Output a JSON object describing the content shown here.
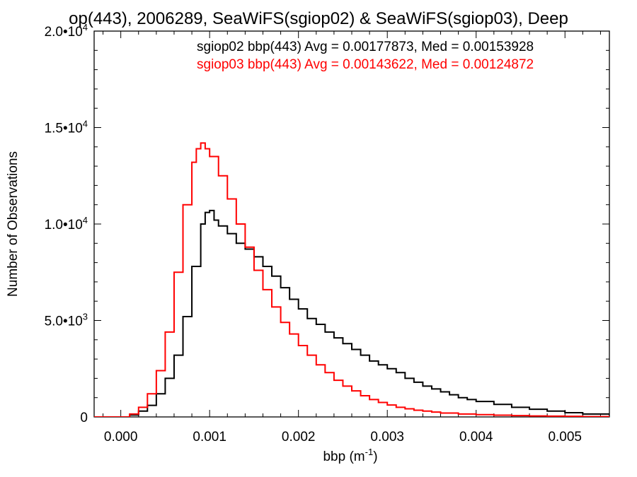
{
  "chart_data": {
    "type": "line",
    "title": "op(443), 2006289, SeaWiFS(sgiop02) & SeaWiFS(sgiop03), Deep",
    "xlabel": {
      "base": "bbp (m",
      "sup": "-1",
      "tail": ")"
    },
    "ylabel": "Number of Observations",
    "xlim": [
      -0.0003,
      0.0055
    ],
    "ylim": [
      0,
      20000
    ],
    "grid": false,
    "legend_position": "top-right",
    "x_ticks": [
      {
        "value": 0.0,
        "label": "0.000"
      },
      {
        "value": 0.001,
        "label": "0.001"
      },
      {
        "value": 0.002,
        "label": "0.002"
      },
      {
        "value": 0.003,
        "label": "0.003"
      },
      {
        "value": 0.004,
        "label": "0.004"
      },
      {
        "value": 0.005,
        "label": "0.005"
      }
    ],
    "y_ticks": [
      {
        "value": 0,
        "mantissa": "0",
        "exp": ""
      },
      {
        "value": 5000,
        "mantissa": "5.0•10",
        "exp": "3"
      },
      {
        "value": 10000,
        "mantissa": "1.0•10",
        "exp": "4"
      },
      {
        "value": 15000,
        "mantissa": "1.5•10",
        "exp": "4"
      },
      {
        "value": 20000,
        "mantissa": "2.0•10",
        "exp": "4"
      }
    ],
    "series": [
      {
        "name": "sgiop02 bbp(443) Avg = 0.00177873, Med = 0.00153928",
        "color": "#000000",
        "x": [
          -0.0003,
          -5e-05,
          0.0001,
          0.0002,
          0.0003,
          0.0004,
          0.0005,
          0.0006,
          0.0007,
          0.0008,
          0.0009,
          0.00095,
          0.001,
          0.00105,
          0.0011,
          0.0012,
          0.0013,
          0.0014,
          0.0015,
          0.0016,
          0.0017,
          0.0018,
          0.0019,
          0.002,
          0.0021,
          0.0022,
          0.0023,
          0.0024,
          0.0025,
          0.0026,
          0.0027,
          0.0028,
          0.0029,
          0.003,
          0.0031,
          0.0032,
          0.0033,
          0.0034,
          0.0035,
          0.0036,
          0.0037,
          0.0038,
          0.0039,
          0.004,
          0.0042,
          0.0044,
          0.0046,
          0.0048,
          0.005,
          0.0052,
          0.0055
        ],
        "values": [
          0,
          0,
          100,
          300,
          600,
          1200,
          2000,
          3200,
          5200,
          7800,
          10000,
          10600,
          10700,
          10200,
          9900,
          9500,
          9000,
          8700,
          8300,
          7800,
          7300,
          6700,
          6100,
          5600,
          5100,
          4800,
          4400,
          4100,
          3800,
          3500,
          3200,
          2900,
          2700,
          2500,
          2300,
          2000,
          1800,
          1600,
          1450,
          1300,
          1150,
          1000,
          900,
          800,
          650,
          500,
          400,
          300,
          220,
          150,
          80
        ]
      },
      {
        "name": "sgiop03 bbp(443) Avg = 0.00143622, Med = 0.00124872",
        "color": "#ff0000",
        "x": [
          -0.0003,
          -5e-05,
          0.0001,
          0.0002,
          0.0003,
          0.0004,
          0.0005,
          0.0006,
          0.0007,
          0.0008,
          0.00085,
          0.0009,
          0.00095,
          0.001,
          0.0011,
          0.0012,
          0.0013,
          0.0014,
          0.0015,
          0.0016,
          0.0017,
          0.0018,
          0.0019,
          0.002,
          0.0021,
          0.0022,
          0.0023,
          0.0024,
          0.0025,
          0.0026,
          0.0027,
          0.0028,
          0.0029,
          0.003,
          0.0031,
          0.0032,
          0.0033,
          0.0034,
          0.0035,
          0.0036,
          0.0038,
          0.004,
          0.0042,
          0.0044,
          0.0046,
          0.0048,
          0.005,
          0.0052,
          0.0055
        ],
        "values": [
          0,
          0,
          150,
          500,
          1200,
          2400,
          4400,
          7500,
          11000,
          13200,
          13900,
          14200,
          13900,
          13500,
          12500,
          11300,
          10000,
          8800,
          7600,
          6600,
          5700,
          4900,
          4300,
          3700,
          3200,
          2700,
          2300,
          1900,
          1600,
          1350,
          1100,
          900,
          750,
          620,
          500,
          420,
          350,
          300,
          250,
          200,
          150,
          120,
          90,
          70,
          50,
          40,
          30,
          20,
          10
        ]
      }
    ]
  }
}
